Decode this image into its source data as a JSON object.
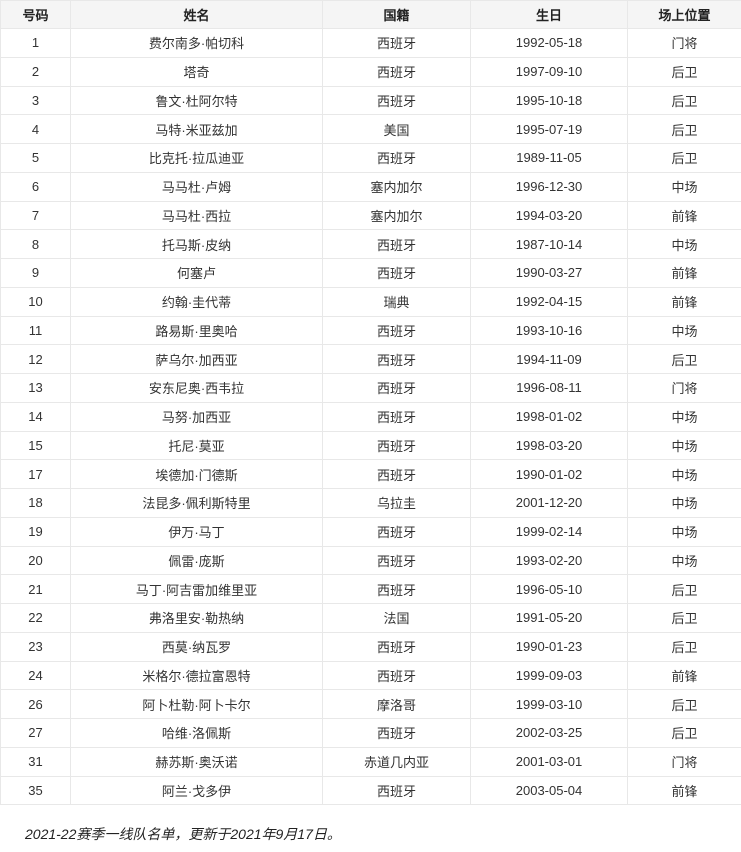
{
  "table": {
    "headers": [
      "号码",
      "姓名",
      "国籍",
      "生日",
      "场上位置"
    ],
    "rows": [
      [
        "1",
        "费尔南多·帕切科",
        "西班牙",
        "1992-05-18",
        "门将"
      ],
      [
        "2",
        "塔奇",
        "西班牙",
        "1997-09-10",
        "后卫"
      ],
      [
        "3",
        "鲁文·杜阿尔特",
        "西班牙",
        "1995-10-18",
        "后卫"
      ],
      [
        "4",
        "马特·米亚兹加",
        "美国",
        "1995-07-19",
        "后卫"
      ],
      [
        "5",
        "比克托·拉瓜迪亚",
        "西班牙",
        "1989-11-05",
        "后卫"
      ],
      [
        "6",
        "马马杜·卢姆",
        "塞内加尔",
        "1996-12-30",
        "中场"
      ],
      [
        "7",
        "马马杜·西拉",
        "塞内加尔",
        "1994-03-20",
        "前锋"
      ],
      [
        "8",
        "托马斯·皮纳",
        "西班牙",
        "1987-10-14",
        "中场"
      ],
      [
        "9",
        "何塞卢",
        "西班牙",
        "1990-03-27",
        "前锋"
      ],
      [
        "10",
        "约翰·圭代蒂",
        "瑞典",
        "1992-04-15",
        "前锋"
      ],
      [
        "11",
        "路易斯·里奥哈",
        "西班牙",
        "1993-10-16",
        "中场"
      ],
      [
        "12",
        "萨乌尔·加西亚",
        "西班牙",
        "1994-11-09",
        "后卫"
      ],
      [
        "13",
        "安东尼奥·西韦拉",
        "西班牙",
        "1996-08-11",
        "门将"
      ],
      [
        "14",
        "马努·加西亚",
        "西班牙",
        "1998-01-02",
        "中场"
      ],
      [
        "15",
        "托尼·莫亚",
        "西班牙",
        "1998-03-20",
        "中场"
      ],
      [
        "17",
        "埃德加·门德斯",
        "西班牙",
        "1990-01-02",
        "中场"
      ],
      [
        "18",
        "法昆多·佩利斯特里",
        "乌拉圭",
        "2001-12-20",
        "中场"
      ],
      [
        "19",
        "伊万·马丁",
        "西班牙",
        "1999-02-14",
        "中场"
      ],
      [
        "20",
        "佩雷·庞斯",
        "西班牙",
        "1993-02-20",
        "中场"
      ],
      [
        "21",
        "马丁·阿吉雷加维里亚",
        "西班牙",
        "1996-05-10",
        "后卫"
      ],
      [
        "22",
        "弗洛里安·勒热纳",
        "法国",
        "1991-05-20",
        "后卫"
      ],
      [
        "23",
        "西莫·纳瓦罗",
        "西班牙",
        "1990-01-23",
        "后卫"
      ],
      [
        "24",
        "米格尔·德拉富恩特",
        "西班牙",
        "1999-09-03",
        "前锋"
      ],
      [
        "26",
        "阿卜杜勒·阿卜卡尔",
        "摩洛哥",
        "1999-03-10",
        "后卫"
      ],
      [
        "27",
        "哈维·洛佩斯",
        "西班牙",
        "2002-03-25",
        "后卫"
      ],
      [
        "31",
        "赫苏斯·奥沃诺",
        "赤道几内亚",
        "2001-03-01",
        "门将"
      ],
      [
        "35",
        "阿兰·戈多伊",
        "西班牙",
        "2003-05-04",
        "前锋"
      ]
    ]
  },
  "footnote": "2021-22赛季一线队名单，更新于2021年9月17日。",
  "colors": {
    "header_bg": "#f5f5f5",
    "border": "#e8e8e8",
    "text": "#333333"
  }
}
